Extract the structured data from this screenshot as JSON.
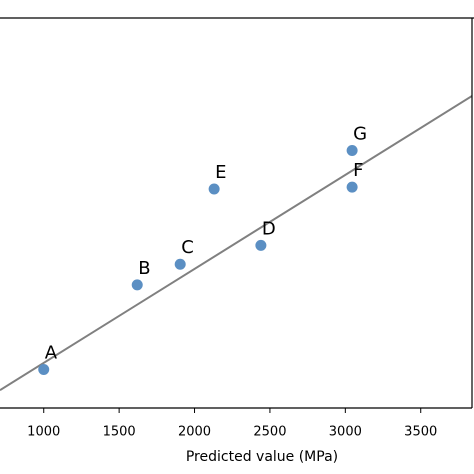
{
  "chart_data": {
    "type": "scatter",
    "xlabel": "Predicted value (MPa)",
    "labels": [
      "A",
      "B",
      "C",
      "D",
      "E",
      "F",
      "G"
    ],
    "x": [
      1000,
      1620,
      1905,
      2440,
      2130,
      3045,
      3045
    ],
    "y": [
      930,
      1830,
      2050,
      2250,
      2850,
      2870,
      3260
    ],
    "color": "#5b8fc3",
    "xlim": [
      710,
      3840
    ],
    "ylim": [
      520,
      4670
    ],
    "xticks": [
      1000,
      1500,
      2000,
      2500,
      3000,
      3500
    ],
    "reference_line": {
      "x": [
        710,
        3840
      ],
      "y": [
        710,
        3840
      ],
      "color": "#808080"
    }
  }
}
